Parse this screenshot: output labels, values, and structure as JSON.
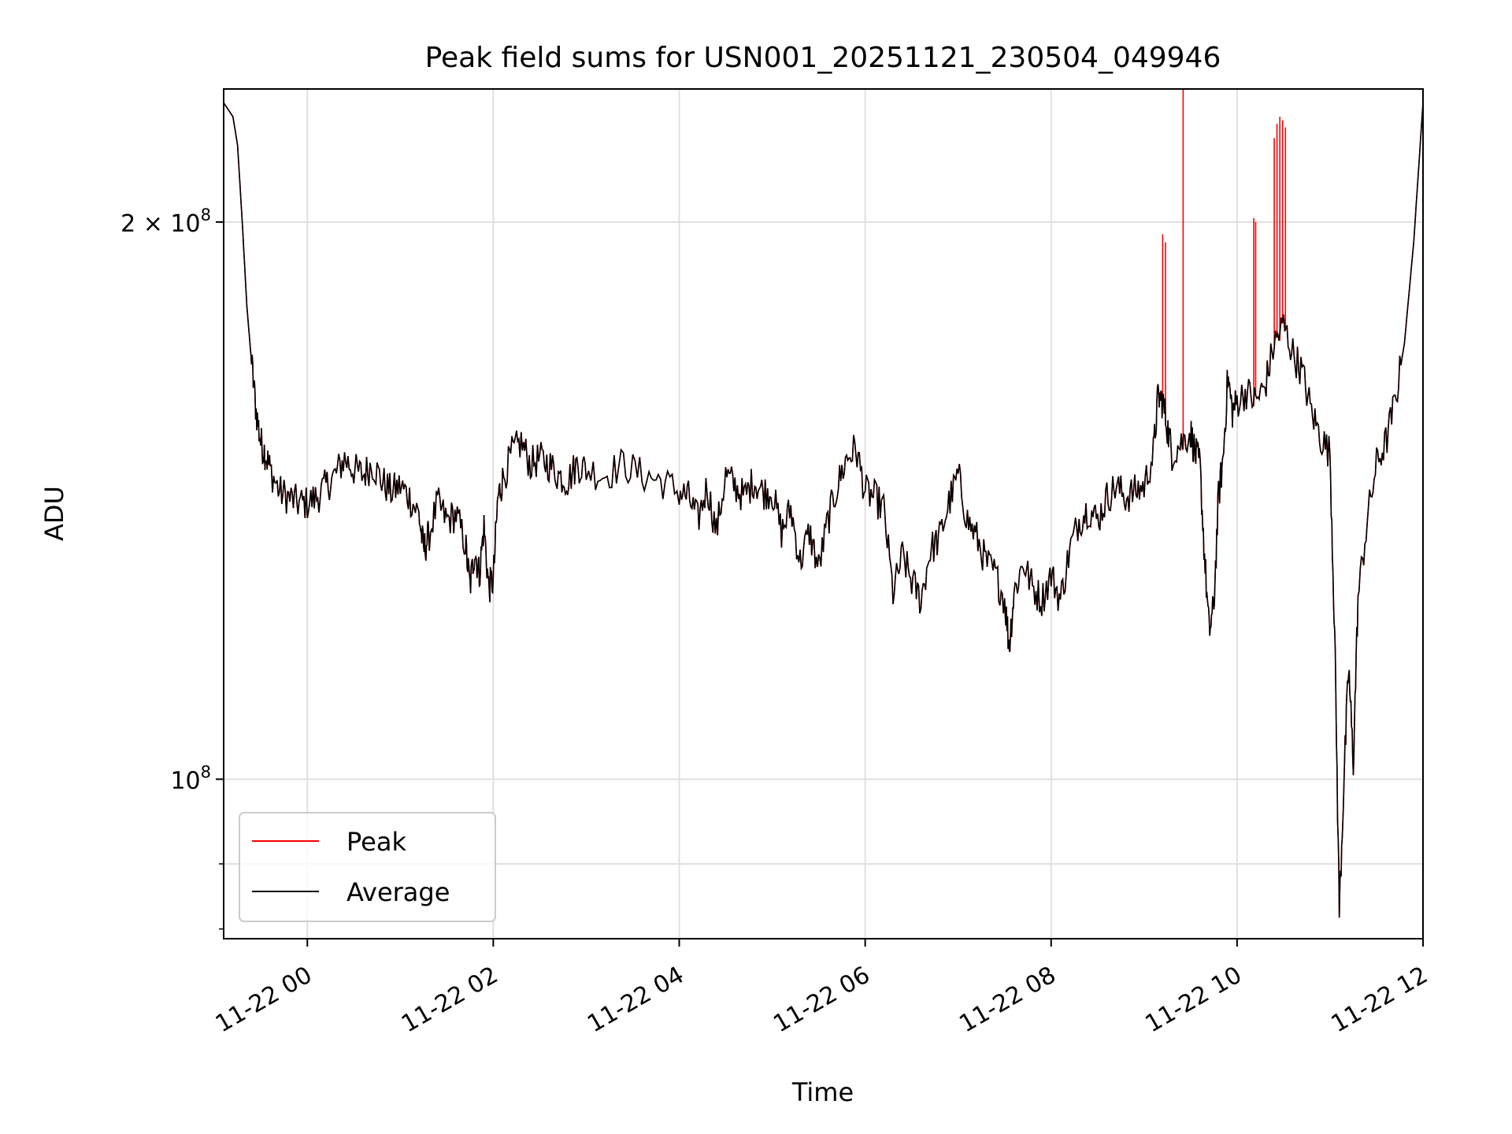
{
  "chart_data": {
    "type": "line",
    "title": "Peak field sums for USN001_20251121_230504_049946",
    "xlabel": "Time",
    "ylabel": "ADU",
    "yscale": "log",
    "ylim": [
      82000000,
      236000000
    ],
    "xlim_hours": [
      -0.9,
      12.0
    ],
    "grid": true,
    "legend_location": "lower-left",
    "x_ticks": [
      {
        "hour": 0,
        "label": "11-22 00"
      },
      {
        "hour": 2,
        "label": "11-22 02"
      },
      {
        "hour": 4,
        "label": "11-22 04"
      },
      {
        "hour": 6,
        "label": "11-22 06"
      },
      {
        "hour": 8,
        "label": "11-22 08"
      },
      {
        "hour": 10,
        "label": "11-22 10"
      },
      {
        "hour": 12,
        "label": "11-22 12"
      }
    ],
    "y_ticks": [
      {
        "value": 100000000,
        "label_base": "10",
        "label_exp": "8",
        "label_mantissa": ""
      },
      {
        "value": 200000000,
        "label_base": "10",
        "label_exp": "8",
        "label_mantissa": "2 × "
      }
    ],
    "y_minor_ticks": [
      90000000
    ],
    "series": [
      {
        "name": "Average",
        "color": "#000000",
        "points_hour_value": [
          [
            -0.9,
            232000000
          ],
          [
            -0.8,
            228000000
          ],
          [
            -0.75,
            220000000
          ],
          [
            -0.7,
            200000000
          ],
          [
            -0.65,
            180000000
          ],
          [
            -0.6,
            168000000
          ],
          [
            -0.55,
            158000000
          ],
          [
            -0.5,
            152000000
          ],
          [
            -0.45,
            150000000
          ],
          [
            -0.4,
            147000000
          ],
          [
            -0.3,
            143000000
          ],
          [
            -0.2,
            142000000
          ],
          [
            -0.1,
            141000000
          ],
          [
            0.0,
            141000000
          ],
          [
            0.1,
            142000000
          ],
          [
            0.2,
            144000000
          ],
          [
            0.3,
            146000000
          ],
          [
            0.4,
            149000000
          ],
          [
            0.5,
            147000000
          ],
          [
            0.6,
            146000000
          ],
          [
            0.7,
            148000000
          ],
          [
            0.8,
            145000000
          ],
          [
            0.9,
            143000000
          ],
          [
            1.0,
            144000000
          ],
          [
            1.1,
            142000000
          ],
          [
            1.2,
            139000000
          ],
          [
            1.25,
            133000000
          ],
          [
            1.3,
            135000000
          ],
          [
            1.4,
            141000000
          ],
          [
            1.5,
            138000000
          ],
          [
            1.6,
            139000000
          ],
          [
            1.7,
            134000000
          ],
          [
            1.75,
            127000000
          ],
          [
            1.8,
            133000000
          ],
          [
            1.85,
            129000000
          ],
          [
            1.9,
            137000000
          ],
          [
            1.95,
            127000000
          ],
          [
            2.0,
            128000000
          ],
          [
            2.05,
            142000000
          ],
          [
            2.1,
            145000000
          ],
          [
            2.2,
            150000000
          ],
          [
            2.3,
            152000000
          ],
          [
            2.4,
            148000000
          ],
          [
            2.5,
            149000000
          ],
          [
            2.6,
            148000000
          ],
          [
            2.7,
            146000000
          ],
          [
            2.8,
            145000000
          ],
          [
            2.9,
            148000000
          ],
          [
            3.0,
            147000000
          ],
          [
            3.2,
            146000000
          ],
          [
            3.4,
            148000000
          ],
          [
            3.6,
            146000000
          ],
          [
            3.8,
            145000000
          ],
          [
            4.0,
            143000000
          ],
          [
            4.1,
            142000000
          ],
          [
            4.2,
            138000000
          ],
          [
            4.3,
            144000000
          ],
          [
            4.4,
            136000000
          ],
          [
            4.5,
            146000000
          ],
          [
            4.6,
            144000000
          ],
          [
            4.7,
            142000000
          ],
          [
            4.8,
            145000000
          ],
          [
            4.9,
            143000000
          ],
          [
            5.0,
            143000000
          ],
          [
            5.1,
            136000000
          ],
          [
            5.2,
            140000000
          ],
          [
            5.3,
            131000000
          ],
          [
            5.4,
            136000000
          ],
          [
            5.5,
            130000000
          ],
          [
            5.6,
            138000000
          ],
          [
            5.7,
            144000000
          ],
          [
            5.8,
            149000000
          ],
          [
            5.9,
            151000000
          ],
          [
            6.0,
            143000000
          ],
          [
            6.1,
            142000000
          ],
          [
            6.2,
            140000000
          ],
          [
            6.3,
            126000000
          ],
          [
            6.4,
            132000000
          ],
          [
            6.5,
            128000000
          ],
          [
            6.6,
            125000000
          ],
          [
            6.7,
            133000000
          ],
          [
            6.8,
            135000000
          ],
          [
            6.9,
            141000000
          ],
          [
            7.0,
            146000000
          ],
          [
            7.1,
            138000000
          ],
          [
            7.2,
            135000000
          ],
          [
            7.3,
            131000000
          ],
          [
            7.4,
            129000000
          ],
          [
            7.5,
            125000000
          ],
          [
            7.55,
            118000000
          ],
          [
            7.6,
            126000000
          ],
          [
            7.7,
            131000000
          ],
          [
            7.8,
            127000000
          ],
          [
            7.9,
            125000000
          ],
          [
            8.0,
            129000000
          ],
          [
            8.1,
            125000000
          ],
          [
            8.2,
            133000000
          ],
          [
            8.3,
            138000000
          ],
          [
            8.4,
            140000000
          ],
          [
            8.5,
            138000000
          ],
          [
            8.6,
            142000000
          ],
          [
            8.7,
            144000000
          ],
          [
            8.8,
            142000000
          ],
          [
            8.9,
            143000000
          ],
          [
            9.0,
            144000000
          ],
          [
            9.1,
            150000000
          ],
          [
            9.15,
            161000000
          ],
          [
            9.2,
            160000000
          ],
          [
            9.25,
            155000000
          ],
          [
            9.3,
            150000000
          ],
          [
            9.4,
            152000000
          ],
          [
            9.5,
            154000000
          ],
          [
            9.55,
            150000000
          ],
          [
            9.6,
            148000000
          ],
          [
            9.65,
            132000000
          ],
          [
            9.7,
            120000000
          ],
          [
            9.75,
            124000000
          ],
          [
            9.8,
            142000000
          ],
          [
            9.85,
            149000000
          ],
          [
            9.9,
            165000000
          ],
          [
            9.95,
            158000000
          ],
          [
            10.0,
            160000000
          ],
          [
            10.1,
            162000000
          ],
          [
            10.2,
            160000000
          ],
          [
            10.3,
            163000000
          ],
          [
            10.4,
            172000000
          ],
          [
            10.5,
            176000000
          ],
          [
            10.6,
            170000000
          ],
          [
            10.7,
            166000000
          ],
          [
            10.8,
            158000000
          ],
          [
            10.9,
            153000000
          ],
          [
            11.0,
            150000000
          ],
          [
            11.05,
            120000000
          ],
          [
            11.1,
            85000000
          ],
          [
            11.15,
            100000000
          ],
          [
            11.2,
            115000000
          ],
          [
            11.25,
            102000000
          ],
          [
            11.3,
            125000000
          ],
          [
            11.4,
            138000000
          ],
          [
            11.5,
            148000000
          ],
          [
            11.6,
            152000000
          ],
          [
            11.7,
            160000000
          ],
          [
            11.8,
            172000000
          ],
          [
            11.9,
            195000000
          ],
          [
            12.0,
            232000000
          ]
        ]
      },
      {
        "name": "Peak",
        "color": "#ff0000",
        "spikes_hour_value": [
          [
            9.2,
            197000000
          ],
          [
            9.23,
            195000000
          ],
          [
            9.42,
            236000000
          ],
          [
            10.18,
            201000000
          ],
          [
            10.2,
            200000000
          ],
          [
            10.4,
            222000000
          ],
          [
            10.43,
            226000000
          ],
          [
            10.46,
            228000000
          ],
          [
            10.49,
            227000000
          ],
          [
            10.52,
            225000000
          ]
        ]
      }
    ]
  }
}
